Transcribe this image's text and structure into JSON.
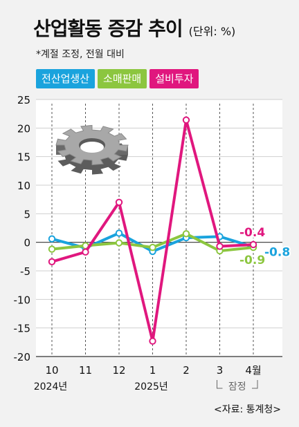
{
  "header": {
    "title": "산업활동 증감 추이",
    "unit": "(단위: %)",
    "note": "*계절 조정, 전월 대비"
  },
  "source": "<자료: 통계청>",
  "icons": {
    "gear": "gear-icon"
  },
  "colors": {
    "industrial": "#1aa3dd",
    "retail": "#8cc63f",
    "facility": "#e0177e",
    "grid": "#cfcfcf",
    "axis": "#333333"
  },
  "chart_data": {
    "type": "line",
    "categories": [
      "10",
      "11",
      "12",
      "1",
      "2",
      "3",
      "4월"
    ],
    "year_labels": [
      {
        "label": "2024년",
        "at": "10"
      },
      {
        "label": "2025년",
        "at": "1"
      }
    ],
    "preliminary_label": "잠정",
    "ylim": [
      -20,
      25
    ],
    "yticks": [
      25,
      20,
      15,
      10,
      5,
      0,
      -5,
      -10,
      -15,
      -20
    ],
    "grid": true,
    "legend_position": "top-left",
    "series": [
      {
        "name": "전산업생산",
        "color": "#1aa3dd",
        "values": [
          0.6,
          -1.0,
          1.6,
          -1.6,
          0.8,
          1.0,
          -0.8
        ],
        "end_label": "-0.8"
      },
      {
        "name": "소매판매",
        "color": "#8cc63f",
        "values": [
          -1.2,
          -0.6,
          -0.1,
          -0.9,
          1.5,
          -1.5,
          -0.9
        ],
        "end_label": "-0.9"
      },
      {
        "name": "설비투자",
        "color": "#e0177e",
        "values": [
          -3.4,
          -1.7,
          7.0,
          -17.3,
          21.4,
          -0.7,
          -0.4
        ],
        "end_label": "-0.4"
      }
    ]
  }
}
